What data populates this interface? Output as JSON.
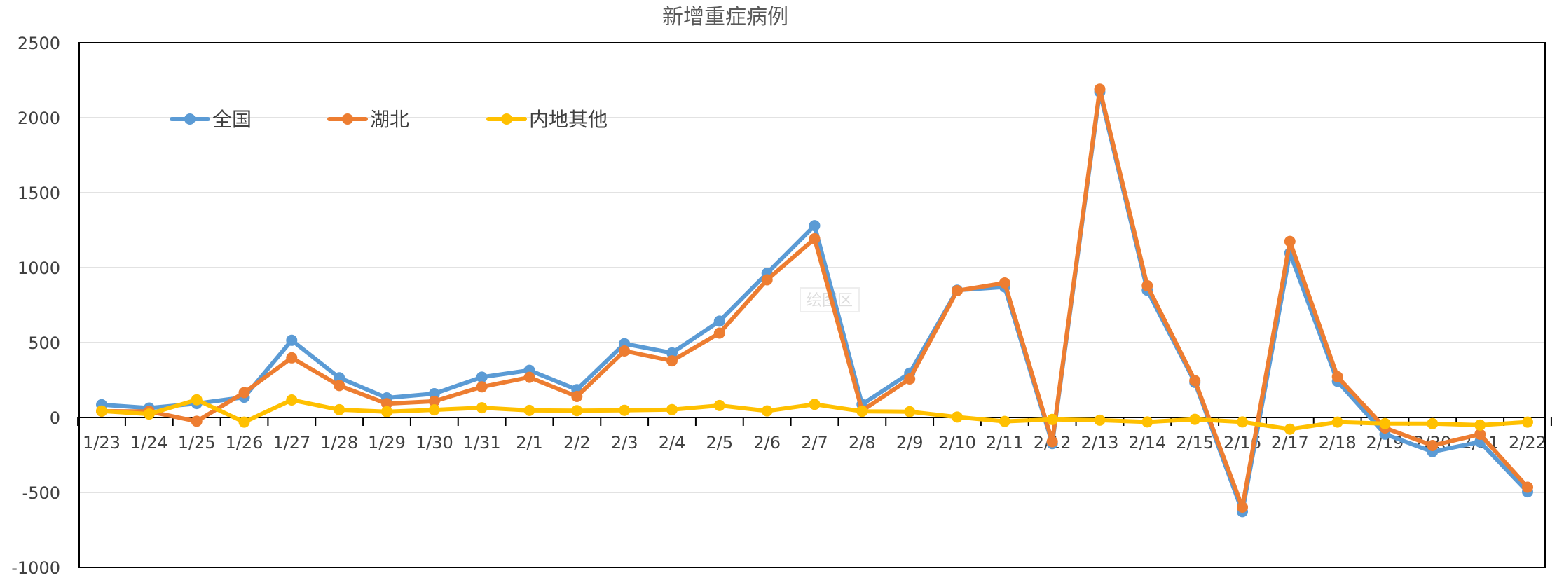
{
  "chart_data": {
    "type": "line",
    "title": "新增重症病例",
    "xlabel": "",
    "ylabel": "",
    "ylim": [
      -1000,
      2500
    ],
    "yticks": [
      -1000,
      -500,
      0,
      500,
      1000,
      1500,
      2000,
      2500
    ],
    "grid": true,
    "legend_position": "top-left",
    "categories": [
      "1/23",
      "1/24",
      "1/25",
      "1/26",
      "1/27",
      "1/28",
      "1/29",
      "1/30",
      "1/31",
      "2/1",
      "2/2",
      "2/3",
      "2/4",
      "2/5",
      "2/6",
      "2/7",
      "2/8",
      "2/9",
      "2/10",
      "2/11",
      "2/12",
      "2/13",
      "2/14",
      "2/15",
      "2/16",
      "2/17",
      "2/18",
      "2/19",
      "2/20",
      "2/21",
      "2/22"
    ],
    "series": [
      {
        "name": "全国",
        "color": "#5B9BD5",
        "values": [
          85,
          63,
          93,
          135,
          515,
          265,
          131,
          159,
          269,
          315,
          186,
          492,
          431,
          643,
          962,
          1280,
          87,
          296,
          849,
          871,
          -174,
          2172,
          849,
          234,
          -628,
          1097,
          241,
          -111,
          -228,
          -163,
          -496
        ]
      },
      {
        "name": "湖北",
        "color": "#ED7D31",
        "values": [
          42,
          40,
          -25,
          166,
          398,
          213,
          92,
          108,
          204,
          268,
          140,
          444,
          378,
          563,
          918,
          1192,
          46,
          257,
          846,
          897,
          -161,
          2190,
          879,
          246,
          -598,
          1175,
          272,
          -70,
          -187,
          -112,
          -465
        ]
      },
      {
        "name": "内地其他",
        "color": "#FFC000",
        "values": [
          43,
          23,
          118,
          -31,
          117,
          52,
          39,
          51,
          65,
          47,
          46,
          48,
          53,
          80,
          44,
          88,
          41,
          39,
          3,
          -26,
          -13,
          -18,
          -30,
          -12,
          -30,
          -78,
          -31,
          -41,
          -41,
          -51,
          -31
        ]
      }
    ]
  },
  "overlay_label": "绘图区"
}
